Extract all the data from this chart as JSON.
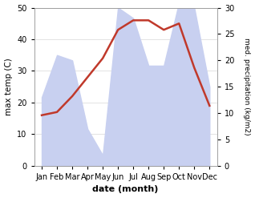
{
  "months": [
    "Jan",
    "Feb",
    "Mar",
    "Apr",
    "May",
    "Jun",
    "Jul",
    "Aug",
    "Sep",
    "Oct",
    "Nov",
    "Dec"
  ],
  "temperature": [
    16,
    17,
    22,
    28,
    34,
    43,
    46,
    46,
    43,
    45,
    31,
    19
  ],
  "precipitation": [
    13,
    21,
    20,
    7,
    2,
    30,
    28,
    19,
    19,
    31,
    30,
    15
  ],
  "temp_color": "#c0392b",
  "precip_fill_color": "#c8d0f0",
  "temp_ylim": [
    0,
    50
  ],
  "precip_ylim": [
    0,
    30
  ],
  "xlabel": "date (month)",
  "ylabel_left": "max temp (C)",
  "ylabel_right": "med. precipitation (kg/m2)",
  "bg_color": "#ffffff",
  "grid_color": "#d8d8d8"
}
